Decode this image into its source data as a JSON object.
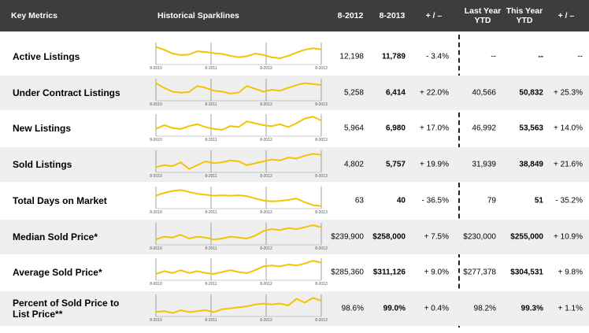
{
  "table": {
    "header": [
      "Key Metrics",
      "Historical Sparklines",
      "8-2012",
      "8-2013",
      "+ / –",
      "Last Year YTD",
      "This Year YTD",
      "+ / –"
    ],
    "sparkline_labels": [
      "8-2010",
      "8-2011",
      "8-2012",
      "8-2013"
    ],
    "rows": [
      {
        "label": "Active Listings",
        "cells": [
          "12,198",
          "11,789",
          "- 3.4%",
          "--",
          "--",
          "--"
        ],
        "sparkline": [
          85,
          70,
          50,
          42,
          45,
          62,
          58,
          52,
          48,
          38,
          30,
          36,
          50,
          42,
          30,
          25,
          38,
          55,
          70,
          78,
          72
        ]
      },
      {
        "label": "Under Contract Listings",
        "cells": [
          "5,258",
          "6,414",
          "+ 22.0%",
          "40,566",
          "50,832",
          "+ 25.3%"
        ],
        "sparkline": [
          85,
          60,
          40,
          35,
          38,
          70,
          60,
          45,
          40,
          30,
          35,
          70,
          55,
          40,
          50,
          45,
          60,
          75,
          85,
          80,
          75
        ]
      },
      {
        "label": "New Listings",
        "cells": [
          "5,964",
          "6,980",
          "+ 17.0%",
          "46,992",
          "53,563",
          "+ 14.0%"
        ],
        "sparkline": [
          30,
          50,
          35,
          30,
          45,
          55,
          40,
          30,
          25,
          45,
          40,
          70,
          60,
          50,
          45,
          55,
          40,
          60,
          85,
          95,
          75
        ]
      },
      {
        "label": "Sold Listings",
        "cells": [
          "4,802",
          "5,757",
          "+ 19.9%",
          "31,939",
          "38,849",
          "+ 21.6%"
        ],
        "sparkline": [
          20,
          30,
          25,
          45,
          10,
          30,
          50,
          40,
          45,
          55,
          50,
          30,
          40,
          50,
          60,
          55,
          70,
          65,
          80,
          90,
          85
        ]
      },
      {
        "label": "Total Days on Market",
        "cells": [
          "63",
          "40",
          "- 36.5%",
          "79",
          "51",
          "- 35.2%"
        ],
        "sparkline": [
          60,
          75,
          85,
          90,
          80,
          70,
          65,
          60,
          62,
          60,
          62,
          58,
          45,
          35,
          30,
          32,
          38,
          45,
          25,
          10,
          5
        ]
      },
      {
        "label": "Median Sold Price*",
        "cells": [
          "$239,900",
          "$258,000",
          "+ 7.5%",
          "$230,000",
          "$255,000",
          "+ 10.9%"
        ],
        "sparkline": [
          20,
          35,
          30,
          45,
          25,
          35,
          30,
          20,
          25,
          35,
          30,
          25,
          40,
          65,
          75,
          70,
          80,
          75,
          85,
          95,
          85
        ]
      },
      {
        "label": "Average Sold Price*",
        "cells": [
          "$285,360",
          "$311,126",
          "+ 9.0%",
          "$277,378",
          "$304,531",
          "+ 9.8%"
        ],
        "sparkline": [
          25,
          40,
          30,
          45,
          30,
          40,
          30,
          25,
          35,
          45,
          35,
          30,
          45,
          65,
          70,
          65,
          75,
          70,
          80,
          95,
          85
        ]
      },
      {
        "label": "Percent of Sold Price to List Price**",
        "cells": [
          "98.6%",
          "99.0%",
          "+ 0.4%",
          "98.2%",
          "99.3%",
          "+ 1.1%"
        ],
        "sparkline": [
          15,
          20,
          10,
          25,
          15,
          20,
          25,
          15,
          30,
          35,
          40,
          45,
          55,
          60,
          55,
          60,
          50,
          85,
          65,
          90,
          75
        ]
      }
    ]
  }
}
